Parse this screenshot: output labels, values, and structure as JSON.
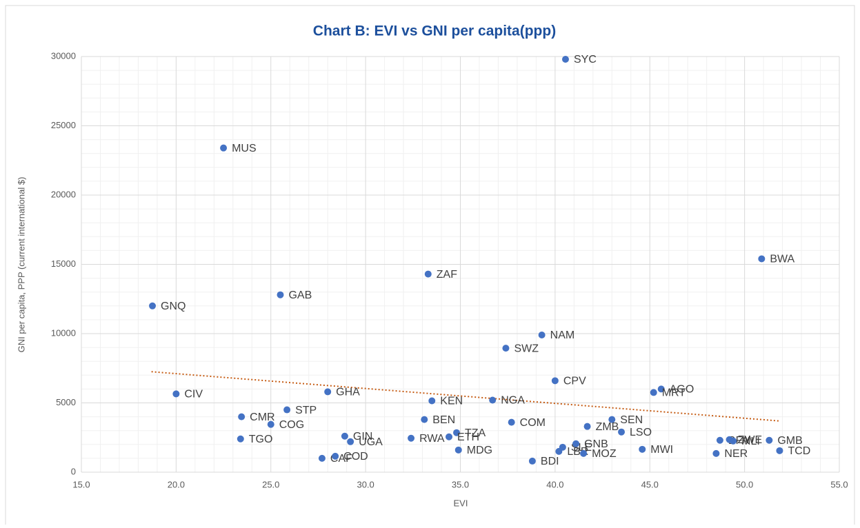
{
  "chart_data": {
    "type": "scatter",
    "title": "Chart B: EVI vs GNI per capita(ppp)",
    "xlabel": "EVI",
    "ylabel": "GNI per capita, PPP (current international $)",
    "labels": [
      "SYC",
      "MUS",
      "BWA",
      "ZAF",
      "GAB",
      "GNQ",
      "NAM",
      "SWZ",
      "CPV",
      "AGO",
      "MRT",
      "CIV",
      "GHA",
      "KEN",
      "NGA",
      "STP",
      "CMR",
      "COG",
      "BEN",
      "COM",
      "SEN",
      "ZMB",
      "LSO",
      "TZA",
      "ETH",
      "GIN",
      "UGA",
      "RWA",
      "TGO",
      "MDG",
      "SLE",
      "GNB",
      "LBR",
      "MOZ",
      "MWI",
      "BDI",
      "CAF",
      "COD",
      "BFA",
      "ZWE",
      "MLI",
      "GMB",
      "NER",
      "TCD"
    ],
    "x": [
      40.55,
      22.5,
      50.9,
      33.3,
      25.5,
      18.75,
      39.3,
      37.4,
      40.0,
      45.6,
      45.2,
      20.0,
      28.0,
      33.5,
      36.7,
      25.85,
      23.45,
      25.0,
      33.1,
      37.7,
      43.0,
      41.7,
      43.5,
      34.8,
      34.4,
      28.9,
      29.2,
      32.4,
      23.4,
      34.9,
      40.4,
      41.1,
      40.2,
      41.5,
      44.6,
      38.8,
      27.7,
      28.4,
      48.7,
      49.2,
      49.4,
      51.3,
      48.5,
      51.85
    ],
    "values": [
      29800,
      23400,
      15400,
      14300,
      12800,
      12000,
      9900,
      8950,
      6600,
      6000,
      5750,
      5650,
      5800,
      5150,
      5200,
      4500,
      4000,
      3450,
      3800,
      3600,
      3800,
      3300,
      2900,
      2850,
      2550,
      2600,
      2200,
      2450,
      2400,
      1600,
      1800,
      2050,
      1500,
      1350,
      1650,
      800,
      1000,
      1150,
      2300,
      2350,
      2250,
      2300,
      1350,
      1550
    ],
    "color": "#4472c4",
    "trendline": {
      "x": [
        18.7,
        51.8
      ],
      "y": [
        7250,
        3700
      ],
      "color": "#c55a11"
    },
    "xlim": [
      15,
      55
    ],
    "xticks": [
      {
        "value": 15,
        "label": "15.0"
      },
      {
        "value": 20,
        "label": "20.0"
      },
      {
        "value": 25,
        "label": "25.0"
      },
      {
        "value": 30,
        "label": "30.0"
      },
      {
        "value": 35,
        "label": "35.0"
      },
      {
        "value": 40,
        "label": "40.0"
      },
      {
        "value": 45,
        "label": "45.0"
      },
      {
        "value": 50,
        "label": "50.0"
      },
      {
        "value": 55,
        "label": "55.0"
      }
    ],
    "ylim": [
      0,
      30000
    ],
    "yticks": [
      0,
      5000,
      10000,
      15000,
      20000,
      25000,
      30000
    ],
    "grid": true
  }
}
